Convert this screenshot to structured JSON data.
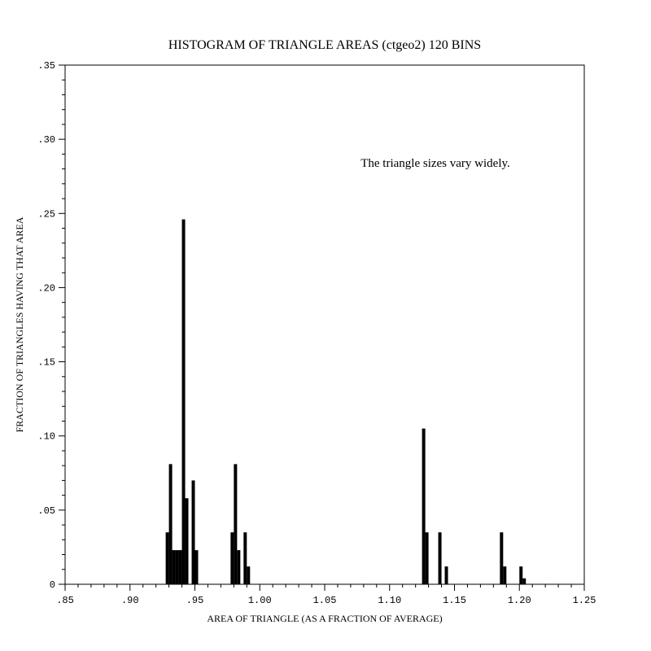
{
  "chart_data": {
    "type": "bar",
    "title": "HISTOGRAM OF TRIANGLE AREAS (ctgeo2)    120 BINS",
    "annotation": "The triangle sizes vary widely.",
    "xlabel": "AREA OF TRIANGLE (AS A FRACTION OF AVERAGE)",
    "ylabel": "FRACTION OF TRIANGLES HAVING THAT AREA",
    "xlim": [
      0.85,
      1.25
    ],
    "ylim": [
      0,
      0.35
    ],
    "bin_width": 0.0025,
    "x_ticks": [
      {
        "value": 0.85,
        "label": ".85"
      },
      {
        "value": 0.9,
        "label": ".90"
      },
      {
        "value": 0.95,
        "label": ".95"
      },
      {
        "value": 1.0,
        "label": "1.00"
      },
      {
        "value": 1.05,
        "label": "1.05"
      },
      {
        "value": 1.1,
        "label": "1.10"
      },
      {
        "value": 1.15,
        "label": "1.15"
      },
      {
        "value": 1.2,
        "label": "1.20"
      },
      {
        "value": 1.25,
        "label": "1.25"
      }
    ],
    "y_ticks": [
      {
        "value": 0,
        "label": "0"
      },
      {
        "value": 0.05,
        "label": ".05"
      },
      {
        "value": 0.1,
        "label": ".10"
      },
      {
        "value": 0.15,
        "label": ".15"
      },
      {
        "value": 0.2,
        "label": ".20"
      },
      {
        "value": 0.25,
        "label": ".25"
      },
      {
        "value": 0.3,
        "label": ".30"
      },
      {
        "value": 0.35,
        "label": ".35"
      }
    ],
    "bins": [
      {
        "x": 0.9275,
        "y": 0.035
      },
      {
        "x": 0.93,
        "y": 0.081
      },
      {
        "x": 0.9325,
        "y": 0.023
      },
      {
        "x": 0.935,
        "y": 0.023
      },
      {
        "x": 0.9375,
        "y": 0.023
      },
      {
        "x": 0.94,
        "y": 0.246
      },
      {
        "x": 0.9425,
        "y": 0.058
      },
      {
        "x": 0.9475,
        "y": 0.07
      },
      {
        "x": 0.95,
        "y": 0.023
      },
      {
        "x": 0.9775,
        "y": 0.035
      },
      {
        "x": 0.98,
        "y": 0.081
      },
      {
        "x": 0.9825,
        "y": 0.023
      },
      {
        "x": 0.9875,
        "y": 0.035
      },
      {
        "x": 0.99,
        "y": 0.012
      },
      {
        "x": 1.125,
        "y": 0.105
      },
      {
        "x": 1.1275,
        "y": 0.035
      },
      {
        "x": 1.1375,
        "y": 0.035
      },
      {
        "x": 1.1425,
        "y": 0.012
      },
      {
        "x": 1.185,
        "y": 0.035
      },
      {
        "x": 1.1875,
        "y": 0.012
      },
      {
        "x": 1.2,
        "y": 0.012
      },
      {
        "x": 1.2025,
        "y": 0.004
      }
    ],
    "bar_color": "#000000",
    "grid": false,
    "legend": "none"
  }
}
